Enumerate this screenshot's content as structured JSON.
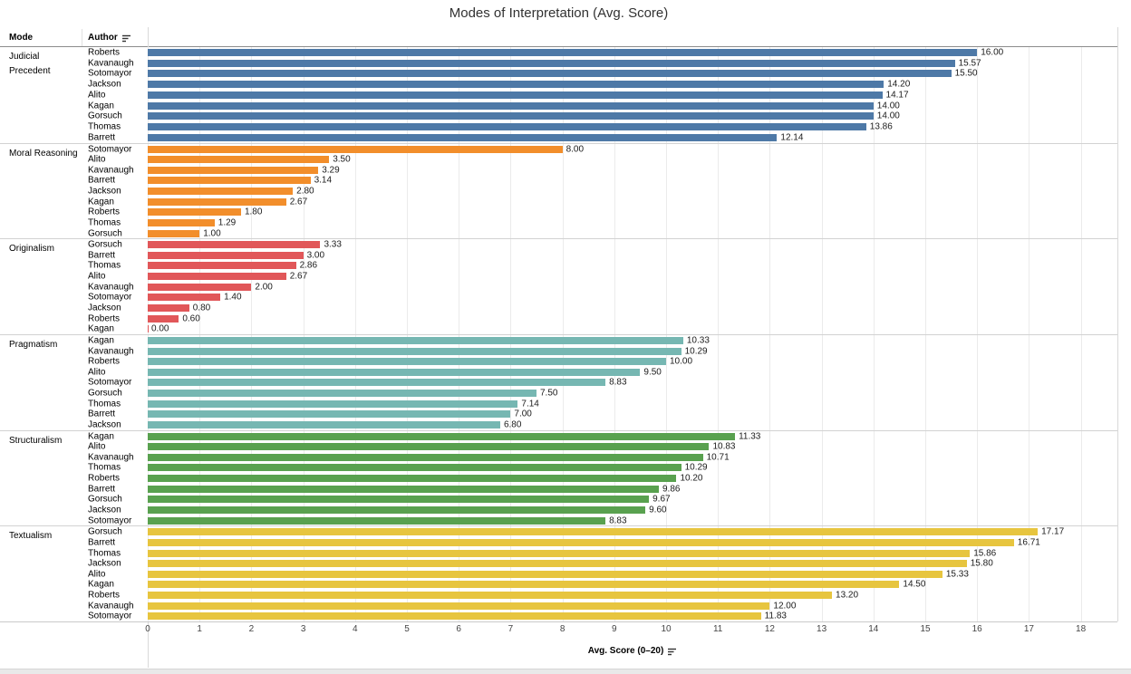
{
  "title": "Modes of Interpretation (Avg. Score)",
  "columns": {
    "mode": "Mode",
    "author": "Author"
  },
  "axis": {
    "label": "Avg. Score (0–20)",
    "ticks": [
      "0",
      "1",
      "2",
      "3",
      "4",
      "5",
      "6",
      "7",
      "8",
      "9",
      "10",
      "11",
      "12",
      "13",
      "14",
      "15",
      "16",
      "17",
      "18"
    ]
  },
  "icons": {
    "author_sort": "sort-descending-icon",
    "axis_sort": "sort-descending-icon"
  },
  "colors": {
    "judicial_precedent": "#4e79a7",
    "moral_reasoning": "#f28e2b",
    "originalism": "#e15759",
    "pragmatism": "#76b7b2",
    "structuralism": "#59a14f",
    "textualism": "#e7c53f"
  },
  "chart_data": {
    "type": "bar",
    "orientation": "horizontal",
    "title": "Modes of Interpretation (Avg. Score)",
    "xlabel": "Avg. Score (0–20)",
    "xlim": [
      0,
      18
    ],
    "grid": true,
    "legend": "none",
    "groups": [
      {
        "mode": "Judicial Precedent",
        "color": "#4e79a7",
        "rows": [
          {
            "author": "Roberts",
            "value": 16.0,
            "label": "16.00"
          },
          {
            "author": "Kavanaugh",
            "value": 15.57,
            "label": "15.57"
          },
          {
            "author": "Sotomayor",
            "value": 15.5,
            "label": "15.50"
          },
          {
            "author": "Jackson",
            "value": 14.2,
            "label": "14.20"
          },
          {
            "author": "Alito",
            "value": 14.17,
            "label": "14.17"
          },
          {
            "author": "Kagan",
            "value": 14.0,
            "label": "14.00"
          },
          {
            "author": "Gorsuch",
            "value": 14.0,
            "label": "14.00"
          },
          {
            "author": "Thomas",
            "value": 13.86,
            "label": "13.86"
          },
          {
            "author": "Barrett",
            "value": 12.14,
            "label": "12.14"
          }
        ]
      },
      {
        "mode": "Moral Reasoning",
        "color": "#f28e2b",
        "rows": [
          {
            "author": "Sotomayor",
            "value": 8.0,
            "label": "8.00"
          },
          {
            "author": "Alito",
            "value": 3.5,
            "label": "3.50"
          },
          {
            "author": "Kavanaugh",
            "value": 3.29,
            "label": "3.29"
          },
          {
            "author": "Barrett",
            "value": 3.14,
            "label": "3.14"
          },
          {
            "author": "Jackson",
            "value": 2.8,
            "label": "2.80"
          },
          {
            "author": "Kagan",
            "value": 2.67,
            "label": "2.67"
          },
          {
            "author": "Roberts",
            "value": 1.8,
            "label": "1.80"
          },
          {
            "author": "Thomas",
            "value": 1.29,
            "label": "1.29"
          },
          {
            "author": "Gorsuch",
            "value": 1.0,
            "label": "1.00"
          }
        ]
      },
      {
        "mode": "Originalism",
        "color": "#e15759",
        "rows": [
          {
            "author": "Gorsuch",
            "value": 3.33,
            "label": "3.33"
          },
          {
            "author": "Barrett",
            "value": 3.0,
            "label": "3.00"
          },
          {
            "author": "Thomas",
            "value": 2.86,
            "label": "2.86"
          },
          {
            "author": "Alito",
            "value": 2.67,
            "label": "2.67"
          },
          {
            "author": "Kavanaugh",
            "value": 2.0,
            "label": "2.00"
          },
          {
            "author": "Sotomayor",
            "value": 1.4,
            "label": "1.40"
          },
          {
            "author": "Jackson",
            "value": 0.8,
            "label": "0.80"
          },
          {
            "author": "Roberts",
            "value": 0.6,
            "label": "0.60"
          },
          {
            "author": "Kagan",
            "value": 0.0,
            "label": "0.00"
          }
        ]
      },
      {
        "mode": "Pragmatism",
        "color": "#76b7b2",
        "rows": [
          {
            "author": "Kagan",
            "value": 10.33,
            "label": "10.33"
          },
          {
            "author": "Kavanaugh",
            "value": 10.29,
            "label": "10.29"
          },
          {
            "author": "Roberts",
            "value": 10.0,
            "label": "10.00"
          },
          {
            "author": "Alito",
            "value": 9.5,
            "label": "9.50"
          },
          {
            "author": "Sotomayor",
            "value": 8.83,
            "label": "8.83"
          },
          {
            "author": "Gorsuch",
            "value": 7.5,
            "label": "7.50"
          },
          {
            "author": "Thomas",
            "value": 7.14,
            "label": "7.14"
          },
          {
            "author": "Barrett",
            "value": 7.0,
            "label": "7.00"
          },
          {
            "author": "Jackson",
            "value": 6.8,
            "label": "6.80"
          }
        ]
      },
      {
        "mode": "Structuralism",
        "color": "#59a14f",
        "rows": [
          {
            "author": "Kagan",
            "value": 11.33,
            "label": "11.33"
          },
          {
            "author": "Alito",
            "value": 10.83,
            "label": "10.83"
          },
          {
            "author": "Kavanaugh",
            "value": 10.71,
            "label": "10.71"
          },
          {
            "author": "Thomas",
            "value": 10.29,
            "label": "10.29"
          },
          {
            "author": "Roberts",
            "value": 10.2,
            "label": "10.20"
          },
          {
            "author": "Barrett",
            "value": 9.86,
            "label": "9.86"
          },
          {
            "author": "Gorsuch",
            "value": 9.67,
            "label": "9.67"
          },
          {
            "author": "Jackson",
            "value": 9.6,
            "label": "9.60"
          },
          {
            "author": "Sotomayor",
            "value": 8.83,
            "label": "8.83"
          }
        ]
      },
      {
        "mode": "Textualism",
        "color": "#e7c53f",
        "rows": [
          {
            "author": "Gorsuch",
            "value": 17.17,
            "label": "17.17"
          },
          {
            "author": "Barrett",
            "value": 16.71,
            "label": "16.71"
          },
          {
            "author": "Thomas",
            "value": 15.86,
            "label": "15.86"
          },
          {
            "author": "Jackson",
            "value": 15.8,
            "label": "15.80"
          },
          {
            "author": "Alito",
            "value": 15.33,
            "label": "15.33"
          },
          {
            "author": "Kagan",
            "value": 14.5,
            "label": "14.50"
          },
          {
            "author": "Roberts",
            "value": 13.2,
            "label": "13.20"
          },
          {
            "author": "Kavanaugh",
            "value": 12.0,
            "label": "12.00"
          },
          {
            "author": "Sotomayor",
            "value": 11.83,
            "label": "11.83"
          }
        ]
      }
    ]
  }
}
